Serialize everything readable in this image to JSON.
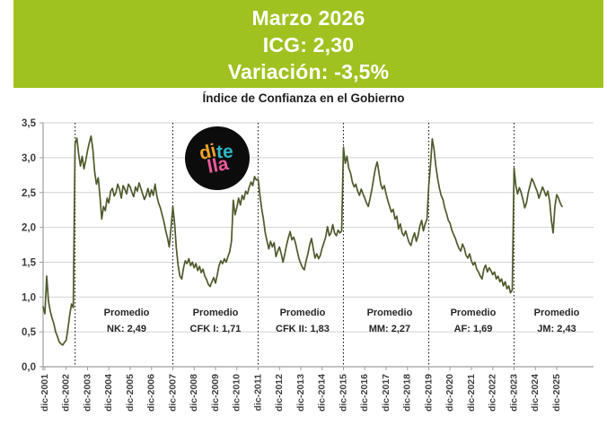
{
  "banner": {
    "bg_color": "#a0c220",
    "lines": [
      "Marzo 2026",
      "ICG: 2,30",
      "Variación: -3,5%"
    ]
  },
  "logo": {
    "parts": [
      {
        "text": "di",
        "color": "#f2a426"
      },
      {
        "text": "te",
        "color": "#2fb8c5"
      },
      {
        "text": "lla",
        "color": "#ee5ba0"
      }
    ]
  },
  "chart_data": {
    "type": "line",
    "title": "Índice de Confianza en el Gobierno",
    "x_start": "nov-2001",
    "x_end": "mar-2026",
    "freq": "monthly",
    "ylim": [
      0,
      3.5
    ],
    "ytick_step": 0.5,
    "ytick_labels": [
      "0,0",
      "0,5",
      "1,0",
      "1,5",
      "2,0",
      "2,5",
      "3,0",
      "3,5"
    ],
    "xtick_labels": [
      "dic-2001",
      "dic-2002",
      "dic-2003",
      "dic-2004",
      "dic-2005",
      "dic-2006",
      "dic-2007",
      "dic-2008",
      "dic-2009",
      "dic-2010",
      "dic-2011",
      "dic-2012",
      "dic-2013",
      "dic-2014",
      "dic-2015",
      "dic-2016",
      "dic-2017",
      "dic-2018",
      "dic-2019",
      "dic-2020",
      "dic-2021",
      "dic-2022",
      "dic-2023",
      "dic-2024",
      "dic-2025"
    ],
    "xtick_month_indices": [
      1,
      13,
      25,
      37,
      49,
      61,
      73,
      85,
      97,
      109,
      121,
      133,
      145,
      157,
      169,
      181,
      193,
      205,
      217,
      229,
      241,
      253,
      265,
      277,
      289
    ],
    "grid": "horizontal",
    "legend": "none",
    "period_boundary_months": [
      18,
      73,
      121,
      169,
      217,
      265
    ],
    "period_labels": [
      {
        "line1": "Promedio",
        "line2": "NK: 2,49",
        "center_month": 47
      },
      {
        "line1": "Promedio",
        "line2": "CFK I: 1,71",
        "center_month": 97
      },
      {
        "line1": "Promedio",
        "line2": "CFK II: 1,83",
        "center_month": 146
      },
      {
        "line1": "Promedio",
        "line2": "MM: 2,27",
        "center_month": 195
      },
      {
        "line1": "Promedio",
        "line2": "AF: 1,69",
        "center_month": 242
      },
      {
        "line1": "Promedio",
        "line2": "JM: 2,43",
        "center_month": 289
      }
    ],
    "series": [
      {
        "name": "ICG",
        "color": "#4e5a2b",
        "values": [
          0.86,
          0.76,
          1.3,
          0.95,
          0.8,
          0.7,
          0.62,
          0.5,
          0.44,
          0.36,
          0.33,
          0.31,
          0.35,
          0.38,
          0.55,
          0.75,
          0.9,
          0.85,
          3.2,
          3.28,
          3.05,
          2.88,
          3.02,
          2.84,
          2.96,
          3.1,
          3.22,
          3.31,
          3.12,
          2.8,
          2.62,
          2.71,
          2.45,
          2.12,
          2.3,
          2.24,
          2.42,
          2.35,
          2.52,
          2.56,
          2.45,
          2.5,
          2.62,
          2.55,
          2.42,
          2.6,
          2.55,
          2.48,
          2.62,
          2.58,
          2.5,
          2.44,
          2.58,
          2.52,
          2.64,
          2.56,
          2.48,
          2.4,
          2.46,
          2.56,
          2.44,
          2.54,
          2.46,
          2.62,
          2.45,
          2.35,
          2.28,
          2.18,
          2.08,
          1.95,
          1.85,
          1.72,
          2.0,
          2.3,
          2.05,
          1.7,
          1.45,
          1.3,
          1.26,
          1.42,
          1.52,
          1.48,
          1.55,
          1.45,
          1.5,
          1.42,
          1.48,
          1.38,
          1.44,
          1.35,
          1.4,
          1.3,
          1.25,
          1.18,
          1.15,
          1.22,
          1.28,
          1.2,
          1.32,
          1.45,
          1.52,
          1.48,
          1.55,
          1.5,
          1.58,
          1.65,
          1.8,
          2.39,
          2.18,
          2.28,
          2.42,
          2.32,
          2.46,
          2.4,
          2.52,
          2.48,
          2.58,
          2.65,
          2.6,
          2.73,
          2.68,
          2.69,
          2.46,
          2.27,
          2.12,
          1.92,
          1.8,
          1.69,
          1.8,
          1.72,
          1.78,
          1.58,
          1.66,
          1.72,
          1.62,
          1.5,
          1.62,
          1.75,
          1.85,
          1.94,
          1.82,
          1.86,
          1.78,
          1.66,
          1.55,
          1.48,
          1.42,
          1.39,
          1.52,
          1.62,
          1.75,
          1.84,
          1.7,
          1.56,
          1.62,
          1.55,
          1.6,
          1.7,
          1.78,
          1.86,
          2.01,
          1.88,
          1.92,
          2.04,
          1.92,
          1.88,
          1.96,
          1.92,
          1.95,
          3.15,
          2.92,
          3.02,
          2.85,
          2.78,
          2.65,
          2.58,
          2.62,
          2.52,
          2.46,
          2.55,
          2.48,
          2.42,
          2.35,
          2.3,
          2.42,
          2.55,
          2.7,
          2.85,
          2.94,
          2.78,
          2.62,
          2.55,
          2.6,
          2.48,
          2.38,
          2.3,
          2.22,
          2.26,
          2.12,
          2.16,
          1.98,
          2.05,
          1.92,
          1.88,
          1.95,
          1.86,
          1.78,
          1.74,
          1.85,
          1.92,
          1.8,
          1.88,
          2.02,
          2.1,
          1.95,
          2.05,
          2.12,
          2.6,
          2.9,
          3.27,
          3.12,
          2.88,
          2.7,
          2.56,
          2.46,
          2.4,
          2.28,
          2.2,
          2.1,
          2.06,
          1.96,
          1.9,
          1.84,
          1.76,
          1.7,
          1.66,
          1.76,
          1.7,
          1.6,
          1.56,
          1.62,
          1.52,
          1.46,
          1.5,
          1.4,
          1.36,
          1.3,
          1.26,
          1.4,
          1.46,
          1.36,
          1.42,
          1.38,
          1.32,
          1.36,
          1.26,
          1.3,
          1.22,
          1.26,
          1.16,
          1.22,
          1.12,
          1.16,
          1.06,
          1.1,
          2.85,
          2.6,
          2.48,
          2.57,
          2.5,
          2.4,
          2.28,
          2.35,
          2.5,
          2.6,
          2.7,
          2.65,
          2.58,
          2.52,
          2.42,
          2.5,
          2.58,
          2.52,
          2.45,
          2.52,
          2.38,
          2.1,
          1.92,
          2.3,
          2.47,
          2.42,
          2.35,
          2.3
        ]
      }
    ],
    "colors": {
      "gridline": "#d2d2d2",
      "axis": "#9e9e9e",
      "tick_label": "#3d3d3d",
      "period_divider": "#111111",
      "period_label": "#262626"
    }
  }
}
